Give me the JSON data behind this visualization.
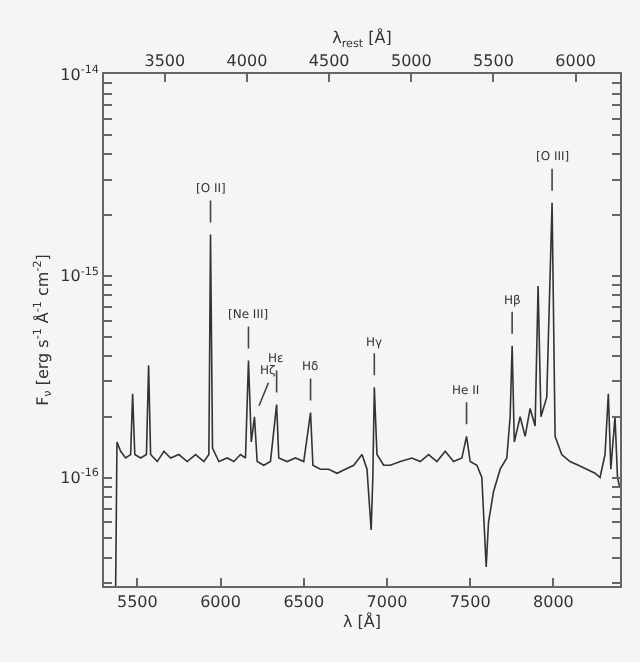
{
  "chart_data": {
    "type": "line",
    "xlabel": "λ [Å]",
    "x2label": "λ$_{rest}$ [Å]",
    "ylabel": "F$_{ν}$ [erg s$^{-1}$ Å$^{-1}$ cm$^{-2}$]",
    "xlim": [
      5300,
      8400
    ],
    "xticks": [
      5500,
      6000,
      6500,
      7000,
      7500,
      8000
    ],
    "x2lim": [
      3130,
      6270
    ],
    "x2ticks": [
      3500,
      4000,
      4500,
      5000,
      5500,
      6000
    ],
    "ylim": [
      2.9e-17,
      1e-14
    ],
    "log": true,
    "grid": false,
    "marker": "none",
    "line_style": "solid",
    "yticks": [
      {
        "value": 1e-14,
        "label": "10$^{-14}$"
      },
      {
        "value": 1e-15,
        "label": "10$^{-15}$"
      },
      {
        "value": 1e-16,
        "label": "10$^{-16}$"
      },
      {
        "value": 3e-17,
        "label": null
      },
      {
        "value": 4e-17,
        "label": null
      },
      {
        "value": 5e-17,
        "label": null
      },
      {
        "value": 6e-17,
        "label": null
      },
      {
        "value": 7e-17,
        "label": null
      },
      {
        "value": 8e-17,
        "label": null
      },
      {
        "value": 9e-17,
        "label": null
      },
      {
        "value": 2e-16,
        "label": null
      },
      {
        "value": 3e-16,
        "label": null
      },
      {
        "value": 4e-16,
        "label": null
      },
      {
        "value": 5e-16,
        "label": null
      },
      {
        "value": 6e-16,
        "label": null
      },
      {
        "value": 7e-16,
        "label": null
      },
      {
        "value": 8e-16,
        "label": null
      },
      {
        "value": 9e-16,
        "label": null
      },
      {
        "value": 2e-15,
        "label": null
      },
      {
        "value": 3e-15,
        "label": null
      },
      {
        "value": 4e-15,
        "label": null
      },
      {
        "value": 5e-15,
        "label": null
      },
      {
        "value": 6e-15,
        "label": null
      },
      {
        "value": 7e-15,
        "label": null
      },
      {
        "value": 8e-15,
        "label": null
      },
      {
        "value": 9e-15,
        "label": null
      }
    ],
    "x": [
      5370,
      5378,
      5400,
      5430,
      5460,
      5472,
      5485,
      5520,
      5555,
      5568,
      5580,
      5620,
      5660,
      5700,
      5750,
      5800,
      5850,
      5900,
      5930,
      5940,
      5952,
      5990,
      6040,
      6080,
      6120,
      6150,
      6168,
      6185,
      6204,
      6220,
      6260,
      6300,
      6337,
      6350,
      6400,
      6450,
      6500,
      6541,
      6555,
      6600,
      6650,
      6700,
      6750,
      6800,
      6850,
      6880,
      6905,
      6915,
      6924,
      6940,
      6980,
      7020,
      7080,
      7150,
      7200,
      7250,
      7300,
      7350,
      7400,
      7450,
      7478,
      7500,
      7540,
      7570,
      7596,
      7610,
      7640,
      7680,
      7720,
      7740,
      7752,
      7765,
      7800,
      7830,
      7860,
      7890,
      7908,
      7925,
      7960,
      7992,
      8010,
      8050,
      8100,
      8150,
      8200,
      8250,
      8280,
      8310,
      8330,
      8345,
      8370,
      8385,
      8398
    ],
    "series": [
      {
        "color": "#333333",
        "values": [
          2.9e-17,
          1.5e-16,
          1.35e-16,
          1.25e-16,
          1.3e-16,
          2.6e-16,
          1.3e-16,
          1.25e-16,
          1.3e-16,
          3.6e-16,
          1.3e-16,
          1.2e-16,
          1.35e-16,
          1.25e-16,
          1.3e-16,
          1.2e-16,
          1.3e-16,
          1.2e-16,
          1.3e-16,
          1.6e-15,
          1.4e-16,
          1.2e-16,
          1.25e-16,
          1.2e-16,
          1.3e-16,
          1.25e-16,
          3.8e-16,
          1.5e-16,
          2e-16,
          1.2e-16,
          1.15e-16,
          1.2e-16,
          2.3e-16,
          1.25e-16,
          1.2e-16,
          1.25e-16,
          1.2e-16,
          2.1e-16,
          1.15e-16,
          1.1e-16,
          1.1e-16,
          1.05e-16,
          1.1e-16,
          1.15e-16,
          1.3e-16,
          1.1e-16,
          5.5e-17,
          1e-16,
          2.8e-16,
          1.3e-16,
          1.15e-16,
          1.15e-16,
          1.2e-16,
          1.25e-16,
          1.2e-16,
          1.3e-16,
          1.2e-16,
          1.35e-16,
          1.2e-16,
          1.25e-16,
          1.6e-16,
          1.2e-16,
          1.15e-16,
          1e-16,
          3.6e-17,
          6e-17,
          8.5e-17,
          1.1e-16,
          1.25e-16,
          2e-16,
          4.5e-16,
          1.5e-16,
          2e-16,
          1.6e-16,
          2.2e-16,
          1.8e-16,
          8.9e-16,
          2e-16,
          2.5e-16,
          2.3e-15,
          1.6e-16,
          1.3e-16,
          1.2e-16,
          1.15e-16,
          1.1e-16,
          1.05e-16,
          1e-16,
          1.3e-16,
          2.6e-16,
          1.1e-16,
          2e-16,
          1e-16,
          9e-17
        ]
      }
    ],
    "annotations": [
      {
        "text": "[O II]",
        "x": 5940,
        "y": 1.6e-15
      },
      {
        "text": "[Ne III]",
        "x": 6168,
        "y": 3.8e-16
      },
      {
        "text": "Hζ",
        "x": 6204,
        "y": 2e-16
      },
      {
        "text": "Hε",
        "x": 6337,
        "y": 2.3e-16
      },
      {
        "text": "Hδ",
        "x": 6541,
        "y": 2.1e-16
      },
      {
        "text": "Hγ",
        "x": 6924,
        "y": 2.8e-16
      },
      {
        "text": "He II",
        "x": 7478,
        "y": 1.6e-16
      },
      {
        "text": "Hβ",
        "x": 7752,
        "y": 4.5e-16
      },
      {
        "text": "[O III]",
        "x": 7992,
        "y": 2.3e-15
      }
    ]
  }
}
